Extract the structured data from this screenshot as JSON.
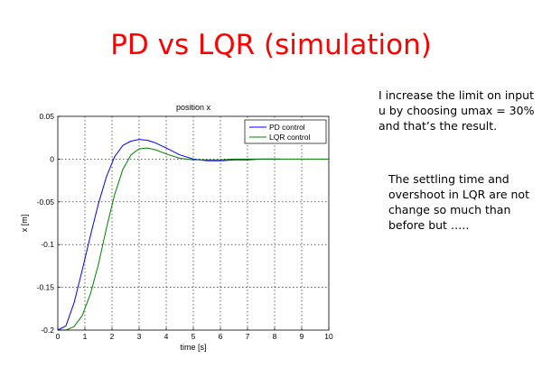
{
  "slide": {
    "title": "PD vs LQR (simulation)",
    "paragraph_1": "I increase the limit on input u by choosing umax = 30% and that’s the result.",
    "paragraph_2": "The settling time and overshoot in LQR are not change so much than before but ….."
  },
  "colors": {
    "title": "#ff0000",
    "pd_series": "#0000ff",
    "lqr_series": "#008000",
    "grid": "#000000"
  },
  "chart_data": {
    "type": "line",
    "title": "position x",
    "xlabel": "time [s]",
    "ylabel": "x [m]",
    "xlim": [
      0,
      10
    ],
    "ylim": [
      -0.2,
      0.05
    ],
    "xticks": [
      0,
      1,
      2,
      3,
      4,
      5,
      6,
      7,
      8,
      9,
      10
    ],
    "yticks": [
      -0.2,
      -0.15,
      -0.1,
      -0.05,
      0,
      0.05
    ],
    "xtick_labels": [
      "0",
      "1",
      "2",
      "3",
      "4",
      "5",
      "6",
      "7",
      "8",
      "9",
      "10"
    ],
    "ytick_labels": [
      "-0.2",
      "-0.15",
      "-0.1",
      "-0.05",
      "0",
      "0.05"
    ],
    "grid": true,
    "legend_position": "top-right",
    "series": [
      {
        "name": "PD control",
        "color": "#0000ff",
        "x": [
          0,
          0.3,
          0.6,
          0.9,
          1.2,
          1.5,
          1.8,
          2.1,
          2.4,
          2.7,
          3.0,
          3.3,
          3.6,
          4.0,
          4.5,
          5.0,
          5.5,
          6.0,
          6.5,
          7.0,
          7.5,
          8.0,
          8.2
        ],
        "y": [
          -0.2,
          -0.195,
          -0.168,
          -0.13,
          -0.09,
          -0.052,
          -0.02,
          0.003,
          0.016,
          0.021,
          0.023,
          0.022,
          0.019,
          0.013,
          0.005,
          0.0,
          -0.002,
          -0.002,
          -0.001,
          -0.001,
          0.0,
          0.0,
          0.0
        ]
      },
      {
        "name": "LQR control",
        "color": "#008000",
        "x": [
          0,
          0.3,
          0.6,
          0.9,
          1.2,
          1.5,
          1.8,
          2.1,
          2.4,
          2.7,
          3.0,
          3.3,
          3.6,
          4.0,
          4.5,
          5.0,
          5.5,
          6.0,
          6.5,
          7.0,
          7.5,
          8.0,
          9.0,
          10.0
        ],
        "y": [
          -0.2,
          -0.2,
          -0.196,
          -0.183,
          -0.158,
          -0.123,
          -0.08,
          -0.041,
          -0.012,
          0.005,
          0.012,
          0.013,
          0.011,
          0.006,
          0.001,
          -0.001,
          -0.001,
          -0.001,
          0.0,
          0.0,
          0.0,
          0.0,
          0.0,
          0.0
        ]
      }
    ]
  }
}
